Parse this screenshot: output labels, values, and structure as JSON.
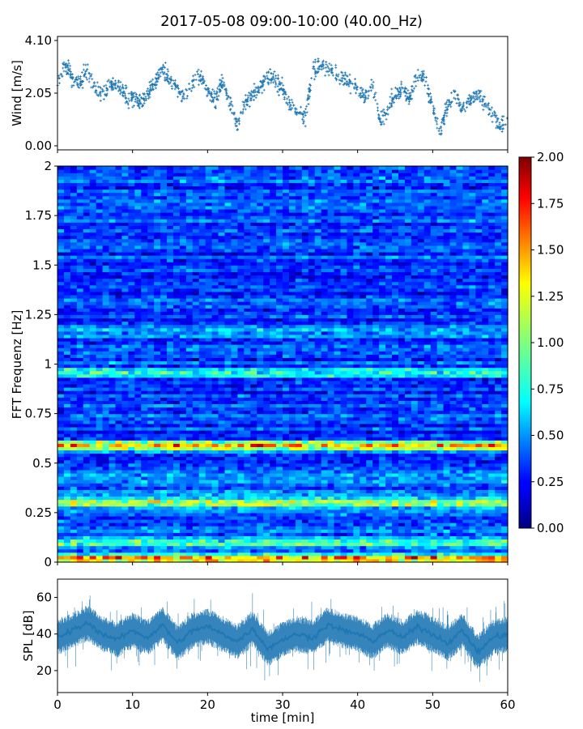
{
  "title": "2017-05-08 09:00-10:00 (40.00_Hz)",
  "colors": {
    "wind": "#1f77b4",
    "spl": "#1f77b4",
    "colormap": "jet"
  },
  "chart_data": [
    {
      "type": "scatter",
      "id": "wind",
      "ylabel": "Wind [m/s]",
      "xlim": [
        0,
        60
      ],
      "ylim": [
        0.0,
        4.1
      ],
      "yticks": [
        "0.00",
        "2.05",
        "4.10"
      ],
      "x_tick_labels_visible": false,
      "series": [
        {
          "x": [
            0,
            1,
            2,
            3,
            4,
            5,
            6,
            7,
            8,
            9,
            10,
            11,
            12,
            13,
            14,
            15,
            16,
            17,
            18,
            19,
            20,
            21,
            22,
            23,
            24,
            25,
            26,
            27,
            28,
            29,
            30,
            31,
            32,
            33,
            34,
            35,
            36,
            37,
            38,
            39,
            40,
            41,
            42,
            43,
            44,
            45,
            46,
            47,
            48,
            49,
            50,
            51,
            52,
            53,
            54,
            55,
            56,
            57,
            58,
            59,
            60
          ],
          "y": [
            2.5,
            3.2,
            2.6,
            2.4,
            3.0,
            2.3,
            2.0,
            2.3,
            2.4,
            2.0,
            1.8,
            1.7,
            2.0,
            2.5,
            3.0,
            2.6,
            2.2,
            1.9,
            2.4,
            2.8,
            2.1,
            1.8,
            2.5,
            1.7,
            0.8,
            1.6,
            2.0,
            2.2,
            2.8,
            2.5,
            2.2,
            1.6,
            1.3,
            1.1,
            2.9,
            3.2,
            3.0,
            2.8,
            2.7,
            2.4,
            2.2,
            1.9,
            2.4,
            0.9,
            1.4,
            2.0,
            2.2,
            1.8,
            2.8,
            2.6,
            1.5,
            0.5,
            1.6,
            2.0,
            1.4,
            1.8,
            2.0,
            1.7,
            1.2,
            0.7,
            1.0
          ]
        }
      ]
    },
    {
      "type": "heatmap",
      "id": "spectrogram",
      "ylabel": "FFT Frequenz [Hz]",
      "xlim": [
        0,
        60
      ],
      "ylim": [
        0,
        2
      ],
      "yticks": [
        "0",
        "0.25",
        "0.5",
        "0.75",
        "1",
        "1.25",
        "1.5",
        "1.75",
        "2"
      ],
      "colorbar": {
        "range": [
          0.0,
          2.0
        ],
        "ticks": [
          "0.00",
          "0.25",
          "0.50",
          "0.75",
          "1.00",
          "1.25",
          "1.50",
          "1.75",
          "2.00"
        ]
      },
      "bands": [
        {
          "freq": 0.02,
          "level": 1.6
        },
        {
          "freq": 0.1,
          "level": 0.9
        },
        {
          "freq": 0.3,
          "level": 1.3
        },
        {
          "freq": 0.59,
          "level": 1.7
        },
        {
          "freq": 0.96,
          "level": 1.0
        },
        {
          "freq": 1.17,
          "level": 0.8
        }
      ]
    },
    {
      "type": "line",
      "id": "spl",
      "ylabel": "SPL [dB]",
      "xlabel": "time [min]",
      "xlim": [
        0,
        60
      ],
      "ylim": [
        8,
        70
      ],
      "xticks": [
        "0",
        "10",
        "20",
        "30",
        "40",
        "50",
        "60"
      ],
      "yticks": [
        "20",
        "40",
        "60"
      ],
      "series": [
        {
          "x": [
            0,
            2,
            4,
            6,
            8,
            10,
            12,
            14,
            16,
            18,
            20,
            22,
            24,
            26,
            28,
            30,
            32,
            34,
            36,
            38,
            40,
            42,
            44,
            46,
            48,
            50,
            52,
            54,
            56,
            58,
            60
          ],
          "y": [
            38,
            42,
            46,
            40,
            37,
            42,
            38,
            45,
            35,
            42,
            44,
            40,
            36,
            43,
            32,
            37,
            40,
            38,
            45,
            42,
            40,
            36,
            42,
            38,
            44,
            40,
            35,
            42,
            30,
            38,
            40
          ]
        }
      ]
    }
  ]
}
